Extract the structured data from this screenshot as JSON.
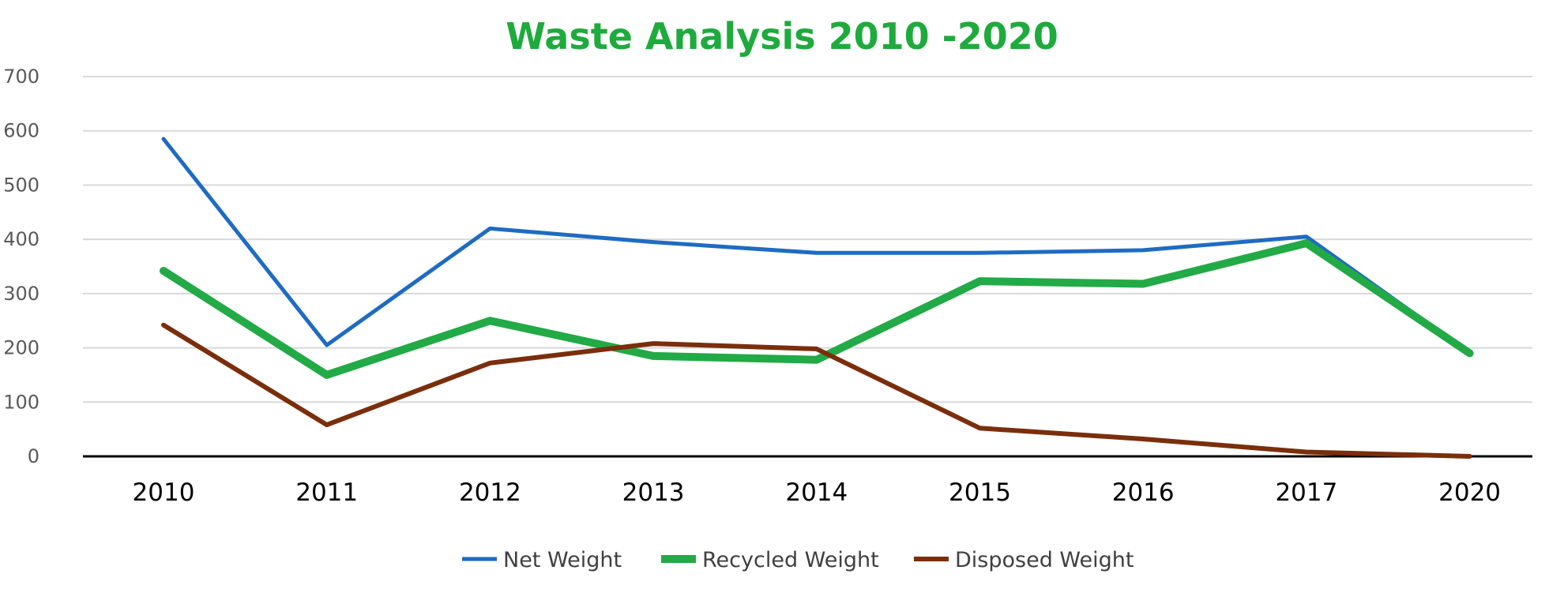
{
  "chart_data": {
    "type": "line",
    "title": "Waste Analysis 2010 -2020",
    "xlabel": "",
    "ylabel": "",
    "categories": [
      "2010",
      "2011",
      "2012",
      "2013",
      "2014",
      "2015",
      "2016",
      "2017",
      "2020"
    ],
    "ylim": [
      0,
      700
    ],
    "yticks": [
      0,
      100,
      200,
      300,
      400,
      500,
      600,
      700
    ],
    "grid": true,
    "legend_position": "bottom",
    "series": [
      {
        "name": "Net Weight",
        "color": "#1F6BC2",
        "values": [
          585,
          205,
          420,
          395,
          375,
          375,
          380,
          405,
          190
        ]
      },
      {
        "name": "Recycled Weight",
        "color": "#22AA46",
        "values": [
          342,
          150,
          250,
          185,
          178,
          323,
          318,
          393,
          190
        ]
      },
      {
        "name": "Disposed Weight",
        "color": "#7A2E0C",
        "values": [
          242,
          58,
          172,
          208,
          198,
          52,
          32,
          8,
          0
        ]
      }
    ],
    "title_color": "#1FAA3D",
    "gridline_color": "#D9D9D9",
    "axis_color": "#000000"
  }
}
